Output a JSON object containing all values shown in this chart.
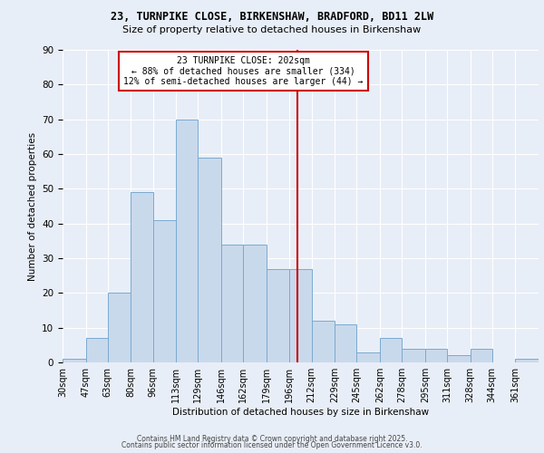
{
  "title1": "23, TURNPIKE CLOSE, BIRKENSHAW, BRADFORD, BD11 2LW",
  "title2": "Size of property relative to detached houses in Birkenshaw",
  "xlabel": "Distribution of detached houses by size in Birkenshaw",
  "ylabel": "Number of detached properties",
  "bin_labels": [
    "30sqm",
    "47sqm",
    "63sqm",
    "80sqm",
    "96sqm",
    "113sqm",
    "129sqm",
    "146sqm",
    "162sqm",
    "179sqm",
    "196sqm",
    "212sqm",
    "229sqm",
    "245sqm",
    "262sqm",
    "278sqm",
    "295sqm",
    "311sqm",
    "328sqm",
    "344sqm",
    "361sqm"
  ],
  "bar_values": [
    1,
    7,
    20,
    49,
    41,
    70,
    59,
    34,
    34,
    27,
    27,
    12,
    11,
    3,
    7,
    4,
    4,
    2,
    4,
    0,
    1
  ],
  "bin_edges": [
    30,
    47,
    63,
    80,
    96,
    113,
    129,
    146,
    162,
    179,
    196,
    212,
    229,
    245,
    262,
    278,
    295,
    311,
    328,
    344,
    361
  ],
  "property_size": 202,
  "bar_color": "#c9d9ec",
  "bar_edge_color": "#7aaad0",
  "vline_color": "#cc0000",
  "annotation_text": "23 TURNPIKE CLOSE: 202sqm\n← 88% of detached houses are smaller (334)\n12% of semi-detached houses are larger (44) →",
  "annotation_box_color": "#ffffff",
  "annotation_border_color": "#cc0000",
  "bg_color": "#e8eef7",
  "plot_bg_color": "#e8eef7",
  "grid_color": "#ffffff",
  "ylim": [
    0,
    90
  ],
  "yticks": [
    0,
    10,
    20,
    30,
    40,
    50,
    60,
    70,
    80,
    90
  ],
  "footer_line1": "Contains HM Land Registry data © Crown copyright and database right 2025.",
  "footer_line2": "Contains public sector information licensed under the Open Government Licence v3.0."
}
